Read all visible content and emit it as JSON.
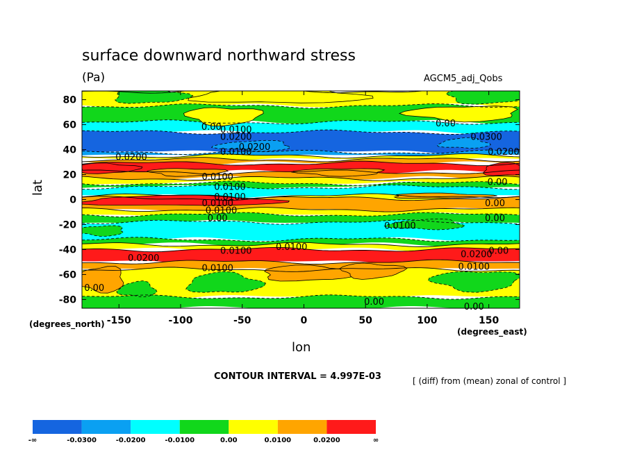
{
  "header": {
    "title": "surface downward northward stress",
    "units": "(Pa)",
    "model": "AGCM5_adj_Qobs"
  },
  "axes": {
    "ylabel": "lat",
    "xlabel": "lon",
    "y_units": "(degrees_north)",
    "x_units": "(degrees_east)"
  },
  "footer": {
    "interval": "CONTOUR INTERVAL = 4.997E-03",
    "diff_note": "[ (diff) from (mean) zonal of control ]"
  },
  "colors": {
    "neg3": "#1565e0",
    "neg2": "#0aa0f2",
    "neg1": "#00ffff",
    "neg0": "#11d71b",
    "pos0": "#ffff00",
    "pos1": "#ffa500",
    "pos2": "#ff1a1a"
  },
  "chart_data": {
    "type": "contour",
    "x": [
      -180,
      -150,
      -100,
      -50,
      0,
      50,
      100,
      150,
      175
    ],
    "xlim": [
      -180,
      175
    ],
    "ylim": [
      -87,
      87
    ],
    "x_ticks": [
      "-150",
      "-100",
      "-50",
      "0",
      "50",
      "100",
      "150"
    ],
    "y_ticks": [
      "80",
      "60",
      "40",
      "20",
      "0",
      "-20",
      "-40",
      "-60",
      "-80"
    ],
    "latitude_bands": [
      {
        "lat_top": 87,
        "lat_bottom": 75,
        "level": "pos0"
      },
      {
        "lat_top": 75,
        "lat_bottom": 62,
        "level": "neg0"
      },
      {
        "lat_top": 62,
        "lat_bottom": 54,
        "level": "neg1"
      },
      {
        "lat_top": 54,
        "lat_bottom": 38,
        "level": "neg3"
      },
      {
        "lat_top": 38,
        "lat_bottom": 35,
        "level": "neg2"
      },
      {
        "lat_top": 35,
        "lat_bottom": 32,
        "level": "pos0"
      },
      {
        "lat_top": 32,
        "lat_bottom": 29,
        "level": "pos1"
      },
      {
        "lat_top": 29,
        "lat_bottom": 22,
        "level": "pos2"
      },
      {
        "lat_top": 22,
        "lat_bottom": 17,
        "level": "pos1"
      },
      {
        "lat_top": 17,
        "lat_bottom": 13,
        "level": "pos0"
      },
      {
        "lat_top": 13,
        "lat_bottom": 10,
        "level": "neg0"
      },
      {
        "lat_top": 10,
        "lat_bottom": 3,
        "level": "neg1"
      },
      {
        "lat_top": 3,
        "lat_bottom": 1,
        "level": "pos0"
      },
      {
        "lat_top": 1,
        "lat_bottom": -8,
        "level": "pos1"
      },
      {
        "lat_top": -8,
        "lat_bottom": -12,
        "level": "pos0"
      },
      {
        "lat_top": -12,
        "lat_bottom": -18,
        "level": "neg0"
      },
      {
        "lat_top": -18,
        "lat_bottom": -32,
        "level": "neg1"
      },
      {
        "lat_top": -32,
        "lat_bottom": -36,
        "level": "neg0"
      },
      {
        "lat_top": -36,
        "lat_bottom": -40,
        "level": "pos0"
      },
      {
        "lat_top": -40,
        "lat_bottom": -50,
        "level": "pos2"
      },
      {
        "lat_top": -50,
        "lat_bottom": -56,
        "level": "pos1"
      },
      {
        "lat_top": -56,
        "lat_bottom": -78,
        "level": "pos0"
      },
      {
        "lat_top": -78,
        "lat_bottom": -87,
        "level": "neg0"
      }
    ],
    "patches": [
      {
        "lon": -20,
        "lat": 83,
        "rx": 70,
        "ry": 6,
        "level": "pos0"
      },
      {
        "lon": -125,
        "lat": 83,
        "rx": 30,
        "ry": 6,
        "level": "neg0"
      },
      {
        "lon": 150,
        "lat": 83,
        "rx": 35,
        "ry": 6,
        "level": "neg0"
      },
      {
        "lon": -65,
        "lat": 67,
        "rx": 30,
        "ry": 7,
        "level": "pos0"
      },
      {
        "lon": 130,
        "lat": 69,
        "rx": 45,
        "ry": 6,
        "level": "pos0"
      },
      {
        "lon": -40,
        "lat": 43,
        "rx": 30,
        "ry": 4,
        "level": "neg2"
      },
      {
        "lon": 130,
        "lat": 45,
        "rx": 20,
        "ry": 4,
        "level": "neg2"
      },
      {
        "lon": 165,
        "lat": 24,
        "rx": 20,
        "ry": 5,
        "level": "pos2"
      },
      {
        "lon": -160,
        "lat": 25,
        "rx": 25,
        "ry": 4,
        "level": "pos2"
      },
      {
        "lon": -95,
        "lat": 22,
        "rx": 30,
        "ry": 3,
        "level": "pos1"
      },
      {
        "lon": 30,
        "lat": 22,
        "rx": 35,
        "ry": 3,
        "level": "pos1"
      },
      {
        "lon": -165,
        "lat": -64,
        "rx": 20,
        "ry": 10,
        "level": "pos1"
      },
      {
        "lon": -135,
        "lat": -72,
        "rx": 15,
        "ry": 6,
        "level": "neg0"
      },
      {
        "lon": -65,
        "lat": -67,
        "rx": 30,
        "ry": 8,
        "level": "neg0"
      },
      {
        "lon": 5,
        "lat": -59,
        "rx": 40,
        "ry": 6,
        "level": "pos1"
      },
      {
        "lon": 55,
        "lat": -57,
        "rx": 25,
        "ry": 6,
        "level": "pos1"
      },
      {
        "lon": 140,
        "lat": -65,
        "rx": 35,
        "ry": 8,
        "level": "neg0"
      },
      {
        "lon": -165,
        "lat": -25,
        "rx": 20,
        "ry": 4,
        "level": "neg0"
      },
      {
        "lon": 100,
        "lat": -20,
        "rx": 30,
        "ry": 4,
        "level": "neg0"
      },
      {
        "lon": -100,
        "lat": -1,
        "rx": 80,
        "ry": 4,
        "level": "pos2"
      },
      {
        "lon": 110,
        "lat": 3,
        "rx": 40,
        "ry": 2,
        "level": "pos1"
      }
    ],
    "contour_labels": [
      {
        "text": "0.00",
        "lon": -75,
        "lat": 58
      },
      {
        "text": "0.0100",
        "lon": -55,
        "lat": 56
      },
      {
        "text": "0.0200",
        "lon": -55,
        "lat": 50
      },
      {
        "text": "0.0200",
        "lon": -40,
        "lat": 42
      },
      {
        "text": "0.0100",
        "lon": -55,
        "lat": 38
      },
      {
        "text": "0.0200",
        "lon": -140,
        "lat": 34
      },
      {
        "text": "0.00",
        "lon": 115,
        "lat": 61
      },
      {
        "text": "0.0300",
        "lon": 148,
        "lat": 50
      },
      {
        "text": "0.0200",
        "lon": 162,
        "lat": 38
      },
      {
        "text": "0.0100",
        "lon": -70,
        "lat": 18
      },
      {
        "text": "0.0100",
        "lon": -60,
        "lat": 10
      },
      {
        "text": "0.00",
        "lon": 157,
        "lat": 14
      },
      {
        "text": "0.0100",
        "lon": -60,
        "lat": 2
      },
      {
        "text": "0.0100",
        "lon": -70,
        "lat": -3
      },
      {
        "text": "0.0100",
        "lon": -67,
        "lat": -9
      },
      {
        "text": "0.00",
        "lon": -70,
        "lat": -15
      },
      {
        "text": "0.00",
        "lon": 155,
        "lat": -3
      },
      {
        "text": "0.00",
        "lon": 155,
        "lat": -15
      },
      {
        "text": "0.0100",
        "lon": 78,
        "lat": -21
      },
      {
        "text": "0.0100",
        "lon": -10,
        "lat": -38
      },
      {
        "text": "0.0100",
        "lon": -55,
        "lat": -41
      },
      {
        "text": "0.0200",
        "lon": -130,
        "lat": -47
      },
      {
        "text": "0.0100",
        "lon": -70,
        "lat": -55
      },
      {
        "text": "0.00",
        "lon": 158,
        "lat": -41
      },
      {
        "text": "0.0200",
        "lon": 140,
        "lat": -44
      },
      {
        "text": "0.0100",
        "lon": 138,
        "lat": -54
      },
      {
        "text": "0.00",
        "lon": -170,
        "lat": -71
      },
      {
        "text": "0.00",
        "lon": 57,
        "lat": -82
      },
      {
        "text": "0.00",
        "lon": 138,
        "lat": -86
      }
    ],
    "colorbar": {
      "levels": [
        "neg3",
        "neg2",
        "neg1",
        "neg0",
        "pos0",
        "pos1",
        "pos2"
      ],
      "labels": [
        "-∞",
        "-0.0300",
        "-0.0200",
        "-0.0100",
        "0.00",
        "0.0100",
        "0.0200",
        "∞"
      ]
    }
  }
}
